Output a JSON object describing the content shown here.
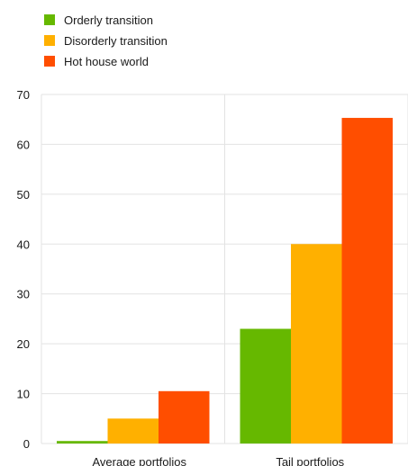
{
  "chart_data": {
    "type": "bar",
    "title": "",
    "xlabel": "",
    "ylabel": "",
    "categories": [
      "Average portfolios",
      "Tail portfolios"
    ],
    "series": [
      {
        "name": "Orderly transition",
        "color": "#66b800",
        "values": [
          0.5,
          23
        ]
      },
      {
        "name": "Disorderly transition",
        "color": "#ffb000",
        "values": [
          5,
          40
        ]
      },
      {
        "name": "Hot house world",
        "color": "#ff4e00",
        "values": [
          10.5,
          65.3
        ]
      }
    ],
    "ylim": [
      0,
      70
    ],
    "yticks": [
      "0",
      "10",
      "20",
      "30",
      "40",
      "50",
      "60",
      "70"
    ],
    "grid": true,
    "legend_position": "top-left"
  }
}
